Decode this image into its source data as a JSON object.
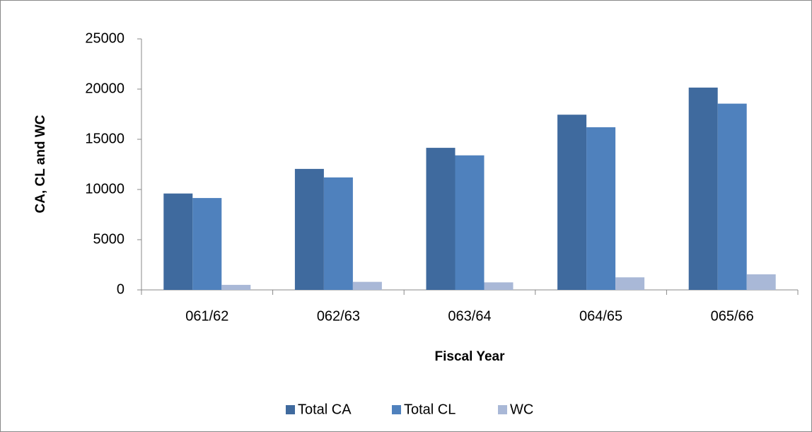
{
  "chart_data": {
    "type": "bar",
    "x_label": "Fiscal Year",
    "y_label": "CA, CL and WC",
    "categories": [
      "061/62",
      "062/63",
      "063/64",
      "064/65",
      "065/66"
    ],
    "series": [
      {
        "name": "Total CA",
        "color": "#3f6a9e",
        "values": [
          9600,
          12050,
          14150,
          17450,
          20150
        ]
      },
      {
        "name": "Total CL",
        "color": "#4f81bd",
        "values": [
          9150,
          11200,
          13400,
          16200,
          18550
        ]
      },
      {
        "name": "WC",
        "color": "#a9b8d7",
        "values": [
          500,
          800,
          750,
          1250,
          1550
        ]
      }
    ],
    "ylim": [
      0,
      25000
    ],
    "yticks": [
      0,
      5000,
      10000,
      15000,
      20000,
      25000
    ],
    "legend": "bottom"
  }
}
